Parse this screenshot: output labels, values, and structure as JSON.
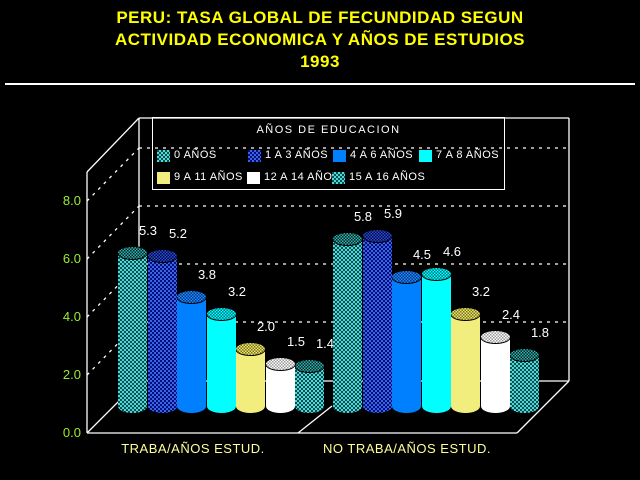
{
  "title": {
    "line1": "PERU: TASA GLOBAL DE FECUNDIDAD SEGUN",
    "line2": "ACTIVIDAD ECONOMICA Y AÑOS DE ESTUDIOS",
    "line3": "1993"
  },
  "legend": {
    "title": "AÑOS DE EDUCACION"
  },
  "y_axis": {
    "ticks": [
      "8.0",
      "6.0",
      "4.0",
      "2.0",
      "0.0"
    ]
  },
  "x_axis": {
    "categories": [
      "TRABA/AÑOS ESTUD.",
      "NO TRABA/AÑOS ESTUD."
    ]
  },
  "colors": {
    "background": "#000000",
    "title_text": "#FFFF00",
    "box_lines": "#FFFFFF",
    "y_tick_labels": "#99EE33",
    "category_labels": "#FFFF99",
    "value_labels": "#FFFFFF",
    "legend_text": "#FFFFFF",
    "bar_blue": "#0080FF",
    "bar_cyan": "#00FFFF",
    "bar_yellow": "#F2EE7D",
    "bar_white": "#FFFFFF",
    "bar_teal_hatch_light": "#4DD9D9",
    "bar_teal_hatch_dark": "#0A4F4F",
    "bar_navy_hatch_light": "#3E63E0",
    "bar_navy_hatch_dark": "#001080"
  },
  "chart_data": {
    "type": "bar",
    "style": "3d-cylinder",
    "title": "PERU: TASA GLOBAL DE FECUNDIDAD SEGUN ACTIVIDAD ECONOMICA Y AÑOS DE ESTUDIOS 1993",
    "legend_title": "AÑOS DE EDUCACION",
    "legend_position": "top",
    "grid": "dashed-horizontal",
    "categories": [
      "TRABA/AÑOS ESTUD.",
      "NO TRABA/AÑOS ESTUD."
    ],
    "series": [
      {
        "name": "0 AÑOS",
        "swatch": "teal-hatch",
        "values": [
          5.3,
          5.8
        ]
      },
      {
        "name": "1 A 3 AÑOS",
        "swatch": "navy-hatch",
        "values": [
          5.2,
          5.9
        ]
      },
      {
        "name": "4 A 6 AÑOS",
        "swatch": "blue",
        "values": [
          3.8,
          4.5
        ]
      },
      {
        "name": "7 A 8 AÑOS",
        "swatch": "cyan",
        "values": [
          3.2,
          4.6
        ]
      },
      {
        "name": "9 A 11 AÑOS",
        "swatch": "yellow",
        "values": [
          2.0,
          3.2
        ]
      },
      {
        "name": "12 A 14 AÑOS",
        "swatch": "white",
        "values": [
          1.5,
          2.4
        ]
      },
      {
        "name": "15 A 16 AÑOS",
        "swatch": "teal-hatch",
        "values": [
          1.4,
          1.8
        ]
      }
    ],
    "ylabel": "",
    "xlabel": "",
    "ylim": [
      0,
      8
    ],
    "y_ticks": [
      0.0,
      2.0,
      4.0,
      6.0,
      8.0
    ]
  }
}
